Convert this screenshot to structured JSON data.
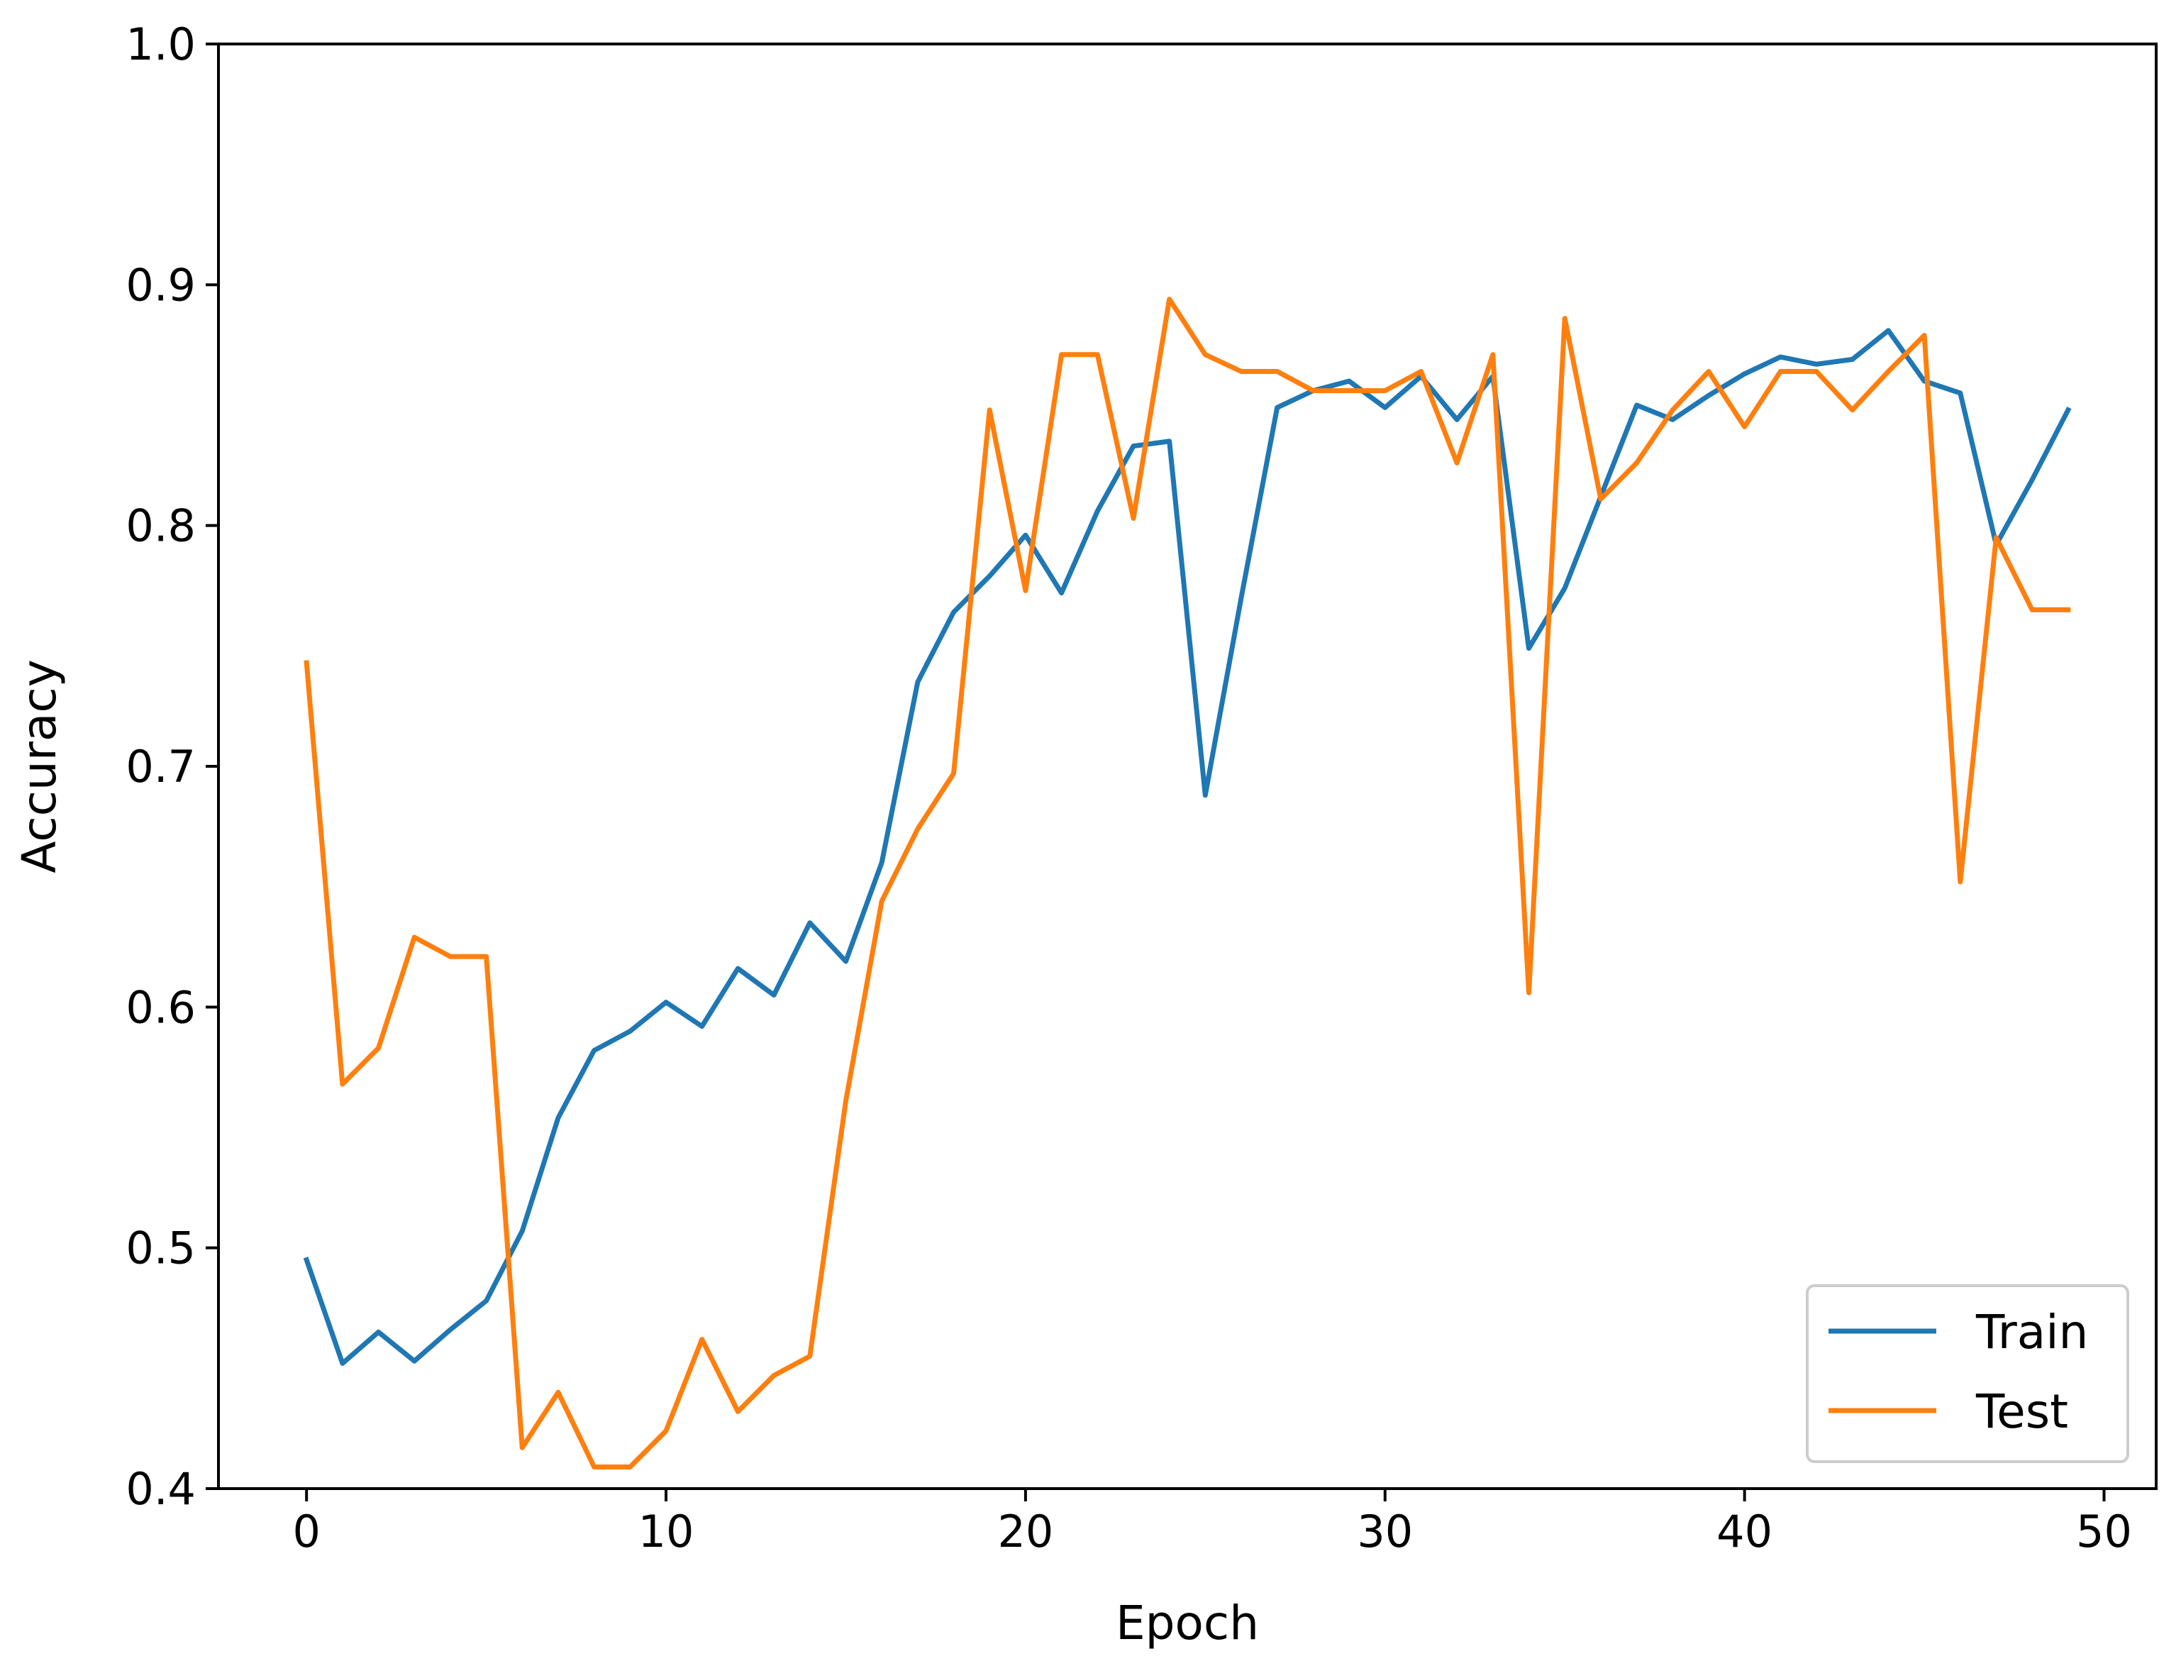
{
  "chart_data": {
    "type": "line",
    "title": "",
    "xlabel": "Epoch",
    "ylabel": "Accuracy",
    "xlim": [
      -2.45,
      51.45
    ],
    "ylim": [
      0.4,
      1.0
    ],
    "xticks": [
      0,
      10,
      20,
      30,
      40,
      50
    ],
    "yticks": [
      0.4,
      0.5,
      0.6,
      0.7,
      0.8,
      0.9,
      1.0
    ],
    "xtick_labels": [
      "0",
      "10",
      "20",
      "30",
      "40",
      "50"
    ],
    "ytick_labels": [
      "0.4",
      "0.5",
      "0.6",
      "0.7",
      "0.8",
      "0.9",
      "1.0"
    ],
    "grid": false,
    "legend_position": "lower right",
    "x": [
      0,
      1,
      2,
      3,
      4,
      5,
      6,
      7,
      8,
      9,
      10,
      11,
      12,
      13,
      14,
      15,
      16,
      17,
      18,
      19,
      20,
      21,
      22,
      23,
      24,
      25,
      26,
      27,
      28,
      29,
      30,
      31,
      32,
      33,
      34,
      35,
      36,
      37,
      38,
      39,
      40,
      41,
      42,
      43,
      44,
      45,
      46,
      47,
      48,
      49
    ],
    "series": [
      {
        "name": "Train",
        "color": "#1f77b4",
        "values": [
          0.495,
          0.452,
          0.465,
          0.453,
          0.466,
          0.478,
          0.507,
          0.554,
          0.582,
          0.59,
          0.602,
          0.592,
          0.616,
          0.605,
          0.635,
          0.619,
          0.66,
          0.735,
          0.764,
          0.779,
          0.796,
          0.772,
          0.806,
          0.833,
          0.835,
          0.688,
          0.77,
          0.849,
          0.856,
          0.86,
          0.849,
          0.862,
          0.844,
          0.862,
          0.749,
          0.774,
          0.812,
          0.85,
          0.844,
          0.854,
          0.863,
          0.87,
          0.867,
          0.869,
          0.881,
          0.86,
          0.855,
          0.792,
          0.819,
          0.848
        ]
      },
      {
        "name": "Test",
        "color": "#ff7f0e",
        "values": [
          0.743,
          0.568,
          0.583,
          0.629,
          0.621,
          0.621,
          0.417,
          0.44,
          0.409,
          0.409,
          0.424,
          0.462,
          0.432,
          0.447,
          0.455,
          0.561,
          0.644,
          0.674,
          0.697,
          0.848,
          0.773,
          0.871,
          0.871,
          0.803,
          0.894,
          0.871,
          0.864,
          0.864,
          0.856,
          0.856,
          0.856,
          0.864,
          0.826,
          0.871,
          0.606,
          0.886,
          0.811,
          0.826,
          0.848,
          0.864,
          0.841,
          0.864,
          0.864,
          0.848,
          0.864,
          0.879,
          0.652,
          0.795,
          0.765,
          0.765
        ]
      }
    ]
  }
}
